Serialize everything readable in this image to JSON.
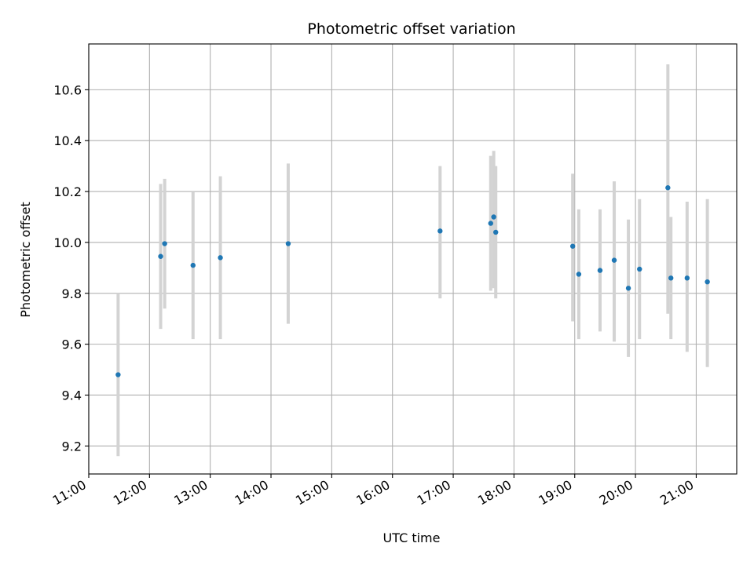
{
  "chart_data": {
    "type": "scatter",
    "title": "Photometric offset variation",
    "xlabel": "UTC time",
    "ylabel": "Photometric offset",
    "x_ticks": [
      "11:00",
      "12:00",
      "13:00",
      "14:00",
      "15:00",
      "16:00",
      "17:00",
      "18:00",
      "19:00",
      "20:00",
      "21:00"
    ],
    "y_ticks": [
      "9.2",
      "9.4",
      "9.6",
      "9.8",
      "10.0",
      "10.2",
      "10.4",
      "10.6"
    ],
    "x_range": [
      "11:00",
      "21:40"
    ],
    "ylim": [
      9.09,
      10.78
    ],
    "grid": true,
    "colors": {
      "point": "#1f77b4",
      "errorbar": "#d3d3d3",
      "grid": "#b0b0b0"
    },
    "points": [
      {
        "x": "11:29",
        "y": 9.48,
        "ylow": 9.16,
        "yhigh": 9.8
      },
      {
        "x": "12:11",
        "y": 9.945,
        "ylow": 9.66,
        "yhigh": 10.23
      },
      {
        "x": "12:15",
        "y": 9.995,
        "ylow": 9.74,
        "yhigh": 10.25
      },
      {
        "x": "12:43",
        "y": 9.91,
        "ylow": 9.62,
        "yhigh": 10.2
      },
      {
        "x": "13:10",
        "y": 9.94,
        "ylow": 9.62,
        "yhigh": 10.26
      },
      {
        "x": "14:17",
        "y": 9.995,
        "ylow": 9.68,
        "yhigh": 10.31
      },
      {
        "x": "16:47",
        "y": 10.045,
        "ylow": 9.78,
        "yhigh": 10.3
      },
      {
        "x": "17:37",
        "y": 10.075,
        "ylow": 9.81,
        "yhigh": 10.34
      },
      {
        "x": "17:40",
        "y": 10.1,
        "ylow": 9.82,
        "yhigh": 10.36
      },
      {
        "x": "17:42",
        "y": 10.04,
        "ylow": 9.78,
        "yhigh": 10.3
      },
      {
        "x": "18:58",
        "y": 9.985,
        "ylow": 9.69,
        "yhigh": 10.27
      },
      {
        "x": "19:04",
        "y": 9.875,
        "ylow": 9.62,
        "yhigh": 10.13
      },
      {
        "x": "19:25",
        "y": 9.89,
        "ylow": 9.65,
        "yhigh": 10.13
      },
      {
        "x": "19:39",
        "y": 9.93,
        "ylow": 9.61,
        "yhigh": 10.24
      },
      {
        "x": "19:53",
        "y": 9.82,
        "ylow": 9.55,
        "yhigh": 10.09
      },
      {
        "x": "20:04",
        "y": 9.895,
        "ylow": 9.62,
        "yhigh": 10.17
      },
      {
        "x": "20:32",
        "y": 10.215,
        "ylow": 9.72,
        "yhigh": 10.7
      },
      {
        "x": "20:35",
        "y": 9.86,
        "ylow": 9.62,
        "yhigh": 10.1
      },
      {
        "x": "20:51",
        "y": 9.86,
        "ylow": 9.57,
        "yhigh": 10.16
      },
      {
        "x": "21:11",
        "y": 9.845,
        "ylow": 9.51,
        "yhigh": 10.17
      }
    ]
  }
}
